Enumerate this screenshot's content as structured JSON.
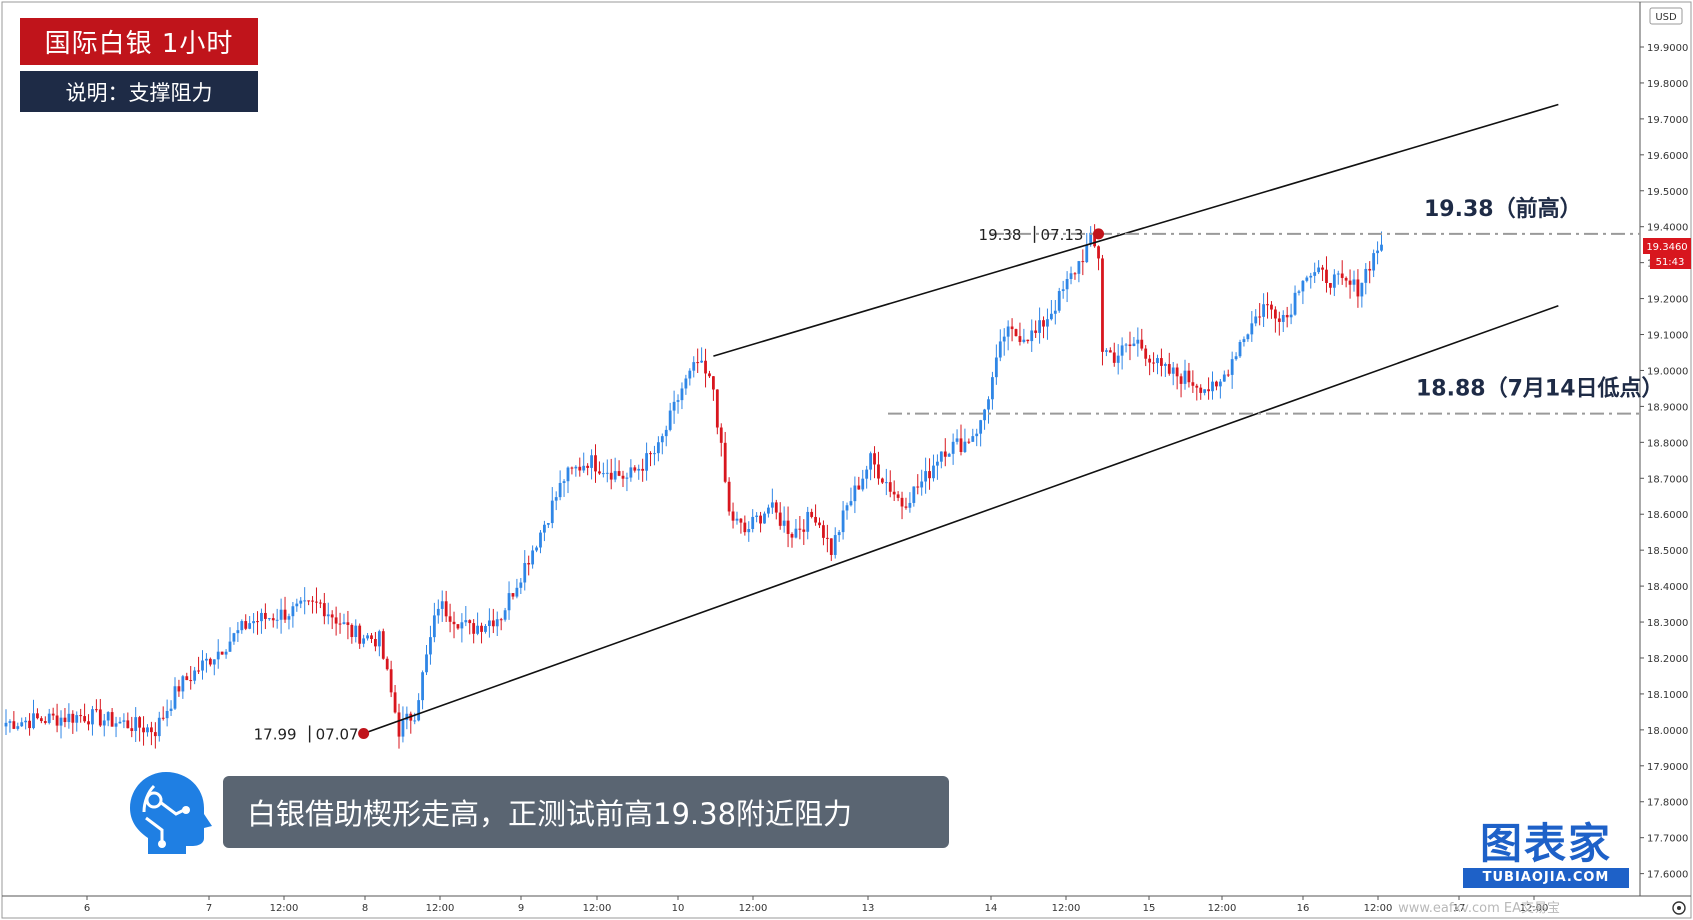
{
  "header": {
    "title": "国际白银 1小时",
    "description": "说明：支撑阻力"
  },
  "caption": "白银借助楔形走高，正测试前高19.38附近阻力",
  "brand": {
    "name": "图表家",
    "sub": "TUBIAOJIA.COM"
  },
  "currency_label": "USD",
  "current_price_label": "19.3460",
  "countdown_label": "51:43",
  "watermark": "www.eafxv.com   EA交易宝",
  "colors": {
    "up": "#2f86e6",
    "down": "#d8161e",
    "title_bg": "#c0141b",
    "desc_bg": "#1e2b46",
    "level": "#9a9a9a"
  },
  "chart_data": {
    "type": "candlestick",
    "title": "国际白银 1小时",
    "ylabel": "USD",
    "ylim": [
      17.55,
      20.02
    ],
    "y_ticks": [
      "19.9000",
      "19.8000",
      "19.7000",
      "19.6000",
      "19.5000",
      "19.4000",
      "19.3000",
      "19.2000",
      "19.1000",
      "19.0000",
      "18.9000",
      "18.8000",
      "18.7000",
      "18.6000",
      "18.5000",
      "18.4000",
      "18.3000",
      "18.2000",
      "18.1000",
      "18.0000",
      "17.9000",
      "17.8000",
      "17.7000",
      "17.6000"
    ],
    "x_ticks": [
      "6",
      "7",
      "12:00",
      "8",
      "12:00",
      "9",
      "12:00",
      "10",
      "12:00",
      "13",
      "14",
      "12:00",
      "15",
      "12:00",
      "16",
      "12:00",
      "17",
      "12:00"
    ],
    "price_anchors": [
      [
        0,
        18.02
      ],
      [
        20,
        18.04
      ],
      [
        38,
        18.0
      ],
      [
        44,
        18.12
      ],
      [
        62,
        18.3
      ],
      [
        80,
        18.35
      ],
      [
        88,
        18.27
      ],
      [
        95,
        18.25
      ],
      [
        100,
        18.0
      ],
      [
        104,
        18.05
      ],
      [
        110,
        18.35
      ],
      [
        118,
        18.28
      ],
      [
        126,
        18.32
      ],
      [
        136,
        18.55
      ],
      [
        142,
        18.7
      ],
      [
        148,
        18.75
      ],
      [
        158,
        18.7
      ],
      [
        166,
        18.78
      ],
      [
        172,
        18.95
      ],
      [
        176,
        19.02
      ],
      [
        180,
        18.95
      ],
      [
        184,
        18.6
      ],
      [
        188,
        18.55
      ],
      [
        194,
        18.62
      ],
      [
        200,
        18.55
      ],
      [
        206,
        18.6
      ],
      [
        210,
        18.5
      ],
      [
        214,
        18.62
      ],
      [
        220,
        18.75
      ],
      [
        228,
        18.63
      ],
      [
        234,
        18.7
      ],
      [
        238,
        18.78
      ],
      [
        244,
        18.8
      ],
      [
        248,
        18.85
      ],
      [
        254,
        19.1
      ],
      [
        262,
        19.1
      ],
      [
        268,
        19.2
      ],
      [
        272,
        19.28
      ],
      [
        276,
        19.36
      ],
      [
        278,
        19.32
      ],
      [
        279,
        19.06
      ],
      [
        282,
        19.04
      ],
      [
        288,
        19.08
      ],
      [
        294,
        19.0
      ],
      [
        300,
        18.98
      ],
      [
        308,
        18.94
      ],
      [
        314,
        19.08
      ],
      [
        320,
        19.18
      ],
      [
        326,
        19.15
      ],
      [
        330,
        19.27
      ],
      [
        336,
        19.26
      ],
      [
        340,
        19.24
      ],
      [
        344,
        19.23
      ],
      [
        347,
        19.3
      ],
      [
        350,
        19.36
      ]
    ],
    "levels": [
      {
        "value": 19.38,
        "label": "19.38（前高）",
        "style": "dash-dot"
      },
      {
        "value": 18.88,
        "label": "18.88（7月14日低点）",
        "style": "dash-dot"
      }
    ],
    "channel": {
      "upper": [
        [
          180,
          19.04
        ],
        [
          395,
          19.74
        ]
      ],
      "lower": [
        [
          91,
          17.99
        ],
        [
          395,
          19.18
        ]
      ]
    },
    "points": [
      {
        "label_value": "17.99",
        "label_date": "07.07",
        "index": 91,
        "value": 17.99
      },
      {
        "label_value": "19.38",
        "label_date": "07.13",
        "index": 278,
        "value": 19.38
      }
    ]
  }
}
